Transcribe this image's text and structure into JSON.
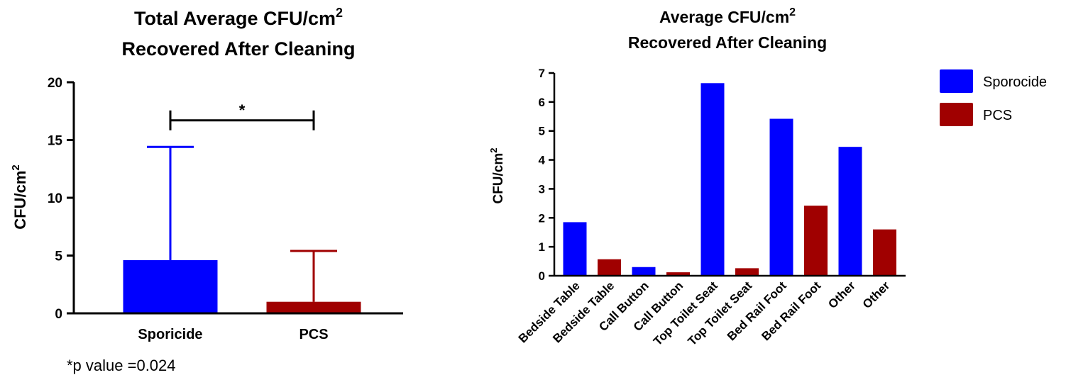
{
  "chart_data": [
    {
      "type": "bar",
      "title": "Total Average CFU/cm",
      "title_superscript": "2",
      "title_line2": "Recovered After Cleaning",
      "ylabel": "CFU/cm",
      "ylabel_superscript": "2",
      "categories": [
        "Sporicide",
        "PCS"
      ],
      "values": [
        4.6,
        1.0
      ],
      "error_upper": [
        14.4,
        5.4
      ],
      "colors": [
        "#0000ff",
        "#a00000"
      ],
      "ylim": [
        0,
        20
      ],
      "yticks": [
        "0",
        "5",
        "10",
        "15",
        "20"
      ],
      "significance": {
        "label": "*",
        "between": [
          "Sporicide",
          "PCS"
        ],
        "y": 16.7
      },
      "footnote": "*p value =0.024"
    },
    {
      "type": "bar",
      "title": "Average CFU/cm",
      "title_superscript": "2",
      "title_line2": "Recovered After Cleaning",
      "ylabel": "CFU/cm",
      "ylabel_superscript": "2",
      "categories": [
        "Bedside Table",
        "Bedside Table",
        "Call Button",
        "Call Button",
        "Top Toilet Seat",
        "Top Toilet Seat",
        "Bed Rail Foot",
        "Bed Rail Foot",
        "Other",
        "Other"
      ],
      "values": [
        1.85,
        0.57,
        0.3,
        0.12,
        6.65,
        0.26,
        5.42,
        2.42,
        4.45,
        1.6
      ],
      "groups": [
        "Sporocide",
        "PCS",
        "Sporocide",
        "PCS",
        "Sporocide",
        "PCS",
        "Sporocide",
        "PCS",
        "Sporocide",
        "PCS"
      ],
      "ylim": [
        0,
        7
      ],
      "yticks": [
        "0",
        "1",
        "2",
        "3",
        "4",
        "5",
        "6",
        "7"
      ],
      "legend": [
        {
          "name": "Sporocide",
          "color": "#0000ff"
        },
        {
          "name": "PCS",
          "color": "#a00000"
        }
      ],
      "legend_position": "right"
    }
  ]
}
